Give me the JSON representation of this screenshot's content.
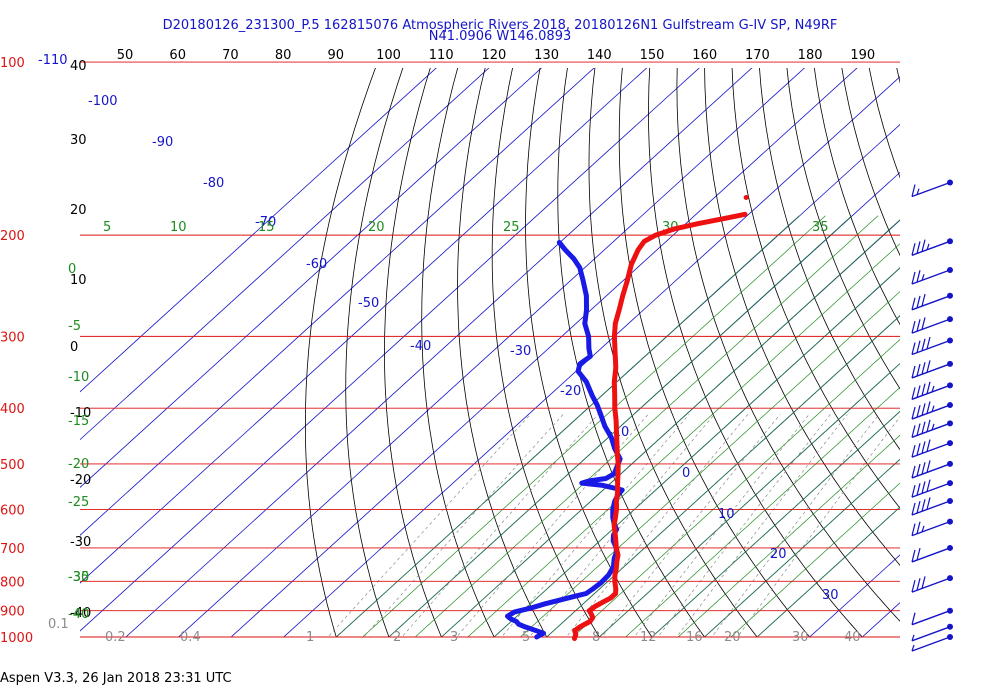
{
  "title_line1": "D20180126_231300_P.5 162815076 Atmospheric Rivers 2018, 20180126N1 Gulfstream G-IV SP, N49RF",
  "title_line2": "N41.0906 W146.0893",
  "footer": "Aspen V3.3, 26 Jan 2018  23:31 UTC",
  "chart_data": {
    "type": "line",
    "title": "D20180126_231300_P.5 162815076 Atmospheric Rivers 2018, 20180126N1 Gulfstream G-IV SP, N49RF",
    "subtitle": "N41.0906 W146.0893",
    "top_ticks": [
      "50",
      "60",
      "70",
      "80",
      "90",
      "100",
      "110",
      "120",
      "130",
      "140",
      "150",
      "160",
      "170",
      "180",
      "190"
    ],
    "pressure_labels": [
      {
        "p": 100,
        "label": "100"
      },
      {
        "p": 200,
        "label": "200"
      },
      {
        "p": 300,
        "label": "300"
      },
      {
        "p": 400,
        "label": "400"
      },
      {
        "p": 500,
        "label": "500"
      },
      {
        "p": 600,
        "label": "600"
      },
      {
        "p": 700,
        "label": "700"
      },
      {
        "p": 800,
        "label": "800"
      },
      {
        "p": 900,
        "label": "900"
      },
      {
        "p": 1000,
        "label": "1000"
      }
    ],
    "left_temp_labels": [
      "40",
      "30",
      "20",
      "10",
      "0",
      "-10",
      "-20",
      "-30",
      "-40"
    ],
    "isotherm_labels": [
      "-110",
      "-100",
      "-90",
      "-80",
      "-70",
      "-60",
      "-50",
      "-40",
      "-30",
      "-20",
      "-10",
      "0",
      "10",
      "20",
      "30"
    ],
    "theta_e_labels": [
      "5",
      "10",
      "15",
      "20",
      "25",
      "30",
      "35"
    ],
    "left_green_labels": [
      "0",
      "-5",
      "-10",
      "-15",
      "-20",
      "-25",
      "-30",
      "-35",
      "-40"
    ],
    "mixing_ratio_labels": [
      "0.1",
      "0.2",
      "0.4",
      "1",
      "2",
      "3",
      "5",
      "8",
      "12",
      "16",
      "20",
      "30",
      "40"
    ],
    "temperature_series": {
      "name": "",
      "color": "#ee1111",
      "points": [
        [
          1006,
          5.6
        ],
        [
          990,
          5.0
        ],
        [
          975,
          4.0
        ],
        [
          960,
          4.2
        ],
        [
          940,
          5.0
        ],
        [
          925,
          4.7
        ],
        [
          910,
          3.5
        ],
        [
          900,
          2.6
        ],
        [
          885,
          2.8
        ],
        [
          870,
          3.4
        ],
        [
          855,
          4.0
        ],
        [
          840,
          4.0
        ],
        [
          825,
          3.1
        ],
        [
          800,
          1.3
        ],
        [
          780,
          0.0
        ],
        [
          760,
          -1.1
        ],
        [
          740,
          -2.4
        ],
        [
          720,
          -3.6
        ],
        [
          700,
          -5.4
        ],
        [
          680,
          -7.0
        ],
        [
          660,
          -8.7
        ],
        [
          640,
          -10.5
        ],
        [
          620,
          -11.9
        ],
        [
          600,
          -13.4
        ],
        [
          580,
          -15.2
        ],
        [
          560,
          -16.8
        ],
        [
          540,
          -18.7
        ],
        [
          520,
          -20.6
        ],
        [
          500,
          -22.6
        ],
        [
          480,
          -24.9
        ],
        [
          460,
          -27.2
        ],
        [
          440,
          -29.6
        ],
        [
          420,
          -32.1
        ],
        [
          400,
          -34.9
        ],
        [
          380,
          -37.6
        ],
        [
          360,
          -40.5
        ],
        [
          340,
          -43.2
        ],
        [
          320,
          -46.5
        ],
        [
          300,
          -50.0
        ],
        [
          285,
          -52.5
        ],
        [
          270,
          -54.6
        ],
        [
          255,
          -56.9
        ],
        [
          240,
          -59.2
        ],
        [
          225,
          -61.8
        ],
        [
          212,
          -63.6
        ],
        [
          205,
          -64.2
        ],
        [
          200,
          -63.3
        ],
        [
          195,
          -61.0
        ],
        [
          191,
          -57.6
        ],
        [
          187,
          -53.6
        ],
        [
          184,
          -50.7
        ]
      ]
    },
    "dewpoint_series": {
      "name": "",
      "color": "#1a1ae6",
      "points": [
        [
          1000,
          -1.9
        ],
        [
          985,
          -1.4
        ],
        [
          975,
          -3.3
        ],
        [
          960,
          -6.3
        ],
        [
          950,
          -8.0
        ],
        [
          940,
          -9.0
        ],
        [
          930,
          -10.6
        ],
        [
          920,
          -11.8
        ],
        [
          905,
          -11.4
        ],
        [
          890,
          -9.0
        ],
        [
          875,
          -7.2
        ],
        [
          860,
          -4.8
        ],
        [
          848,
          -2.9
        ],
        [
          840,
          -1.6
        ],
        [
          825,
          -1.3
        ],
        [
          805,
          -1.0
        ],
        [
          780,
          -1.2
        ],
        [
          755,
          -2.0
        ],
        [
          730,
          -3.6
        ],
        [
          715,
          -4.3
        ],
        [
          700,
          -5.4
        ],
        [
          680,
          -7.5
        ],
        [
          665,
          -8.6
        ],
        [
          650,
          -9.2
        ],
        [
          635,
          -10.9
        ],
        [
          620,
          -12.4
        ],
        [
          600,
          -14.1
        ],
        [
          580,
          -15.5
        ],
        [
          565,
          -16.2
        ],
        [
          555,
          -16.4
        ],
        [
          545,
          -21.0
        ],
        [
          540,
          -25.5
        ],
        [
          535,
          -24.5
        ],
        [
          530,
          -21.9
        ],
        [
          520,
          -21.3
        ],
        [
          505,
          -22.3
        ],
        [
          490,
          -23.3
        ],
        [
          470,
          -26.5
        ],
        [
          450,
          -29.4
        ],
        [
          430,
          -33.0
        ],
        [
          410,
          -36.3
        ],
        [
          395,
          -38.9
        ],
        [
          380,
          -41.9
        ],
        [
          360,
          -45.8
        ],
        [
          345,
          -49.6
        ],
        [
          335,
          -50.8
        ],
        [
          325,
          -50.4
        ],
        [
          315,
          -52.3
        ],
        [
          300,
          -54.9
        ],
        [
          285,
          -58.3
        ],
        [
          270,
          -60.8
        ],
        [
          255,
          -63.8
        ],
        [
          240,
          -67.6
        ],
        [
          228,
          -70.9
        ],
        [
          220,
          -73.9
        ],
        [
          212,
          -77.5
        ],
        [
          206,
          -80.1
        ]
      ]
    },
    "extra_point": {
      "p": 172,
      "t": -54.0
    },
    "wind_barbs": [
      {
        "p": 162,
        "speed": 15,
        "dir": 280
      },
      {
        "p": 205,
        "speed": 35,
        "dir": 275
      },
      {
        "p": 230,
        "speed": 25,
        "dir": 275
      },
      {
        "p": 255,
        "speed": 30,
        "dir": 275
      },
      {
        "p": 280,
        "speed": 30,
        "dir": 275
      },
      {
        "p": 305,
        "speed": 40,
        "dir": 275
      },
      {
        "p": 335,
        "speed": 40,
        "dir": 275
      },
      {
        "p": 365,
        "speed": 45,
        "dir": 275
      },
      {
        "p": 395,
        "speed": 45,
        "dir": 275
      },
      {
        "p": 425,
        "speed": 45,
        "dir": 275
      },
      {
        "p": 460,
        "speed": 40,
        "dir": 275
      },
      {
        "p": 500,
        "speed": 40,
        "dir": 275
      },
      {
        "p": 540,
        "speed": 40,
        "dir": 280
      },
      {
        "p": 580,
        "speed": 40,
        "dir": 280
      },
      {
        "p": 630,
        "speed": 25,
        "dir": 280
      },
      {
        "p": 700,
        "speed": 20,
        "dir": 280
      },
      {
        "p": 790,
        "speed": 30,
        "dir": 300
      },
      {
        "p": 900,
        "speed": 10,
        "dir": 260
      },
      {
        "p": 960,
        "speed": 5,
        "dir": 220
      },
      {
        "p": 1000,
        "speed": 5,
        "dir": 220
      }
    ],
    "colors": {
      "isobar": "#dd1111",
      "isotherm": "#1414c8",
      "dry_adiabat": "#000000",
      "moist_adiabat": "#1e8c1e",
      "mixing_ratio": "#8c8c8c"
    }
  }
}
